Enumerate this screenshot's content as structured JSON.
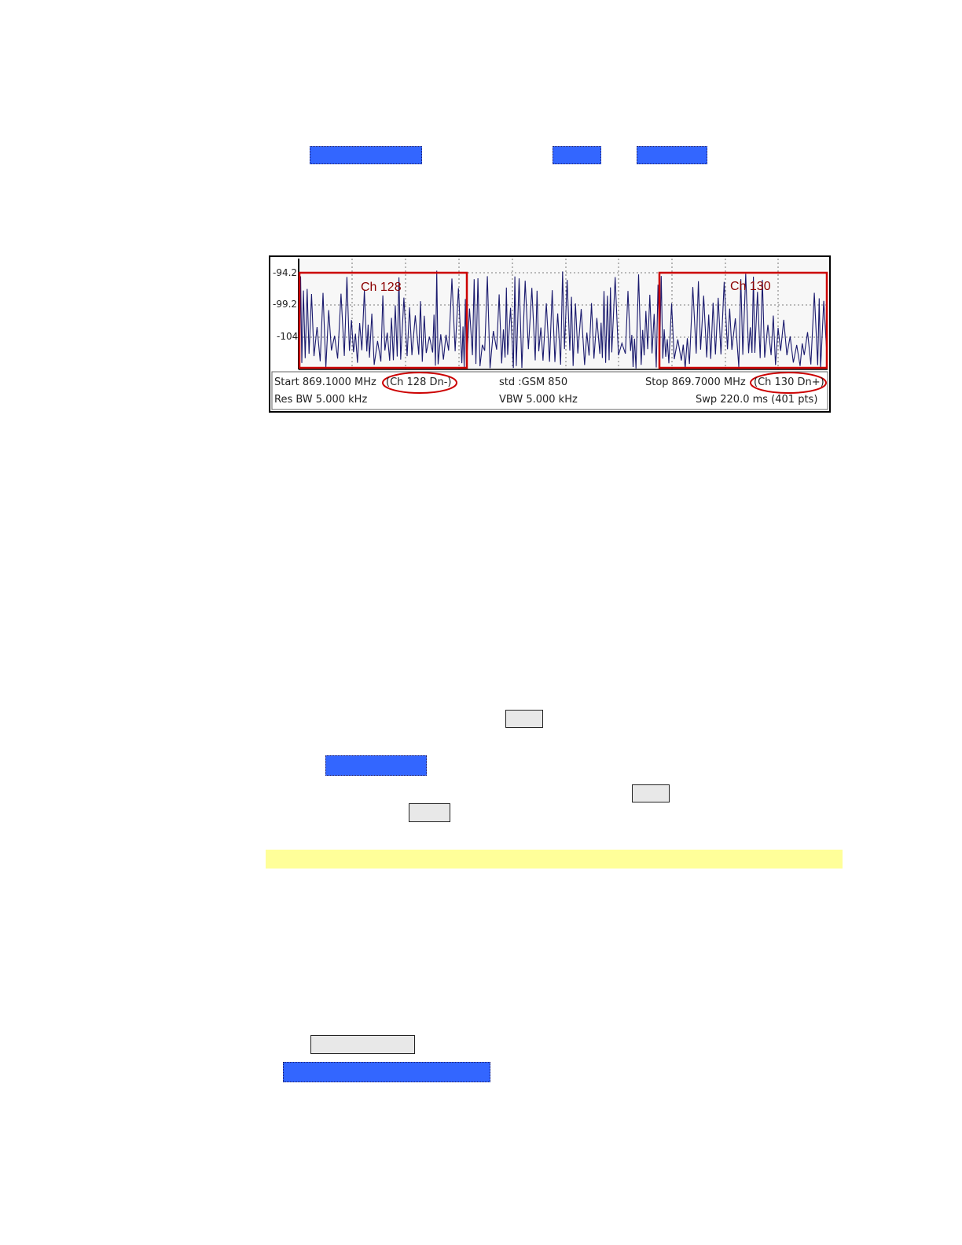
{
  "highlight_colors": {
    "blue": "#3366ff",
    "gray": "#e8e8e8",
    "yellow": "#ffff99",
    "trace": "#1a1a6e",
    "marker": "#cc0000"
  },
  "analyzer": {
    "y_ticks": [
      "-94.2",
      "-99.2",
      "-104"
    ],
    "channel_boxes": [
      {
        "label": "Ch 128"
      },
      {
        "label": "Ch 130"
      }
    ],
    "info": {
      "start": "Start 869.1000 MHz",
      "start_ch": "(Ch 128 Dn-)",
      "std": "std :GSM 850",
      "stop": "Stop 869.7000 MHz",
      "stop_ch": "(Ch 130 Dn+)",
      "res_bw": "Res BW 5.000 kHz",
      "vbw": "VBW 5.000 kHz",
      "swp": "Swp 220.0 ms (401 pts)"
    }
  }
}
